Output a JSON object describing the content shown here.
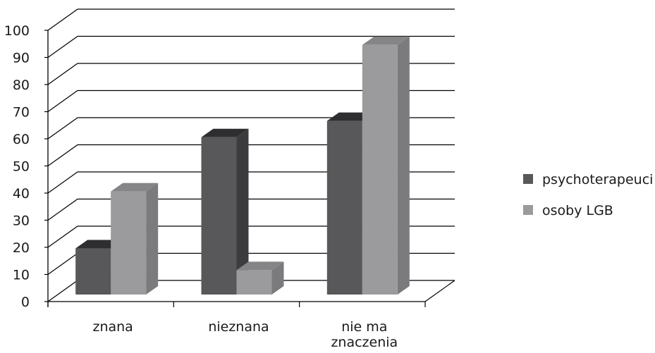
{
  "chart_data": {
    "type": "bar",
    "style": "3d-clustered-column",
    "categories": [
      "znana",
      "nieznana",
      "nie ma znaczenia"
    ],
    "category_lines": [
      [
        "znana"
      ],
      [
        "nieznana"
      ],
      [
        "nie ma",
        "znaczenia"
      ]
    ],
    "series": [
      {
        "name": "psychoterapeuci",
        "values": [
          17,
          58,
          64
        ],
        "color": "#58585a",
        "side": "#3c3c3e",
        "top": "#2e2e30"
      },
      {
        "name": "osoby LGB",
        "values": [
          38,
          9,
          92
        ],
        "color": "#9b9b9d",
        "side": "#7b7b7d",
        "top": "#858587"
      }
    ],
    "ylim": [
      0,
      100
    ],
    "yticks": [
      "0",
      "10",
      "20",
      "30",
      "40",
      "50",
      "60",
      "70",
      "80",
      "90",
      "100"
    ],
    "grid": true,
    "legend": "right",
    "title": "",
    "xlabel": "",
    "ylabel": ""
  }
}
